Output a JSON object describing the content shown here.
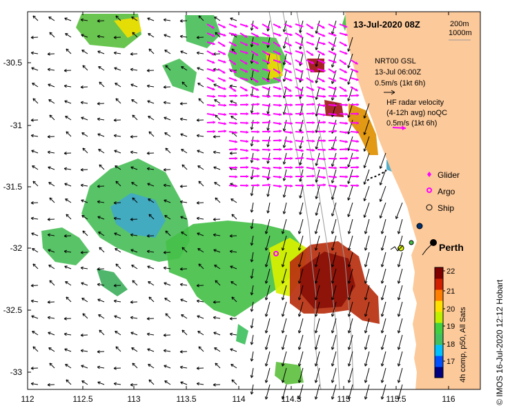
{
  "title": "13-Jul-2020 08Z",
  "isobaths": [
    "200m",
    "1000m"
  ],
  "model_legend": {
    "lines": [
      "NRT00 GSL",
      "13-Jul 06:00Z",
      "0.5m/s (1kt 6h)"
    ],
    "arrow_color": "#000000"
  },
  "radar_legend": {
    "lines": [
      "HF radar velocity",
      "(4-12h avg) noQC",
      "0.5m/s (1kt 6h)"
    ],
    "arrow_color": "#ff00ff"
  },
  "symbols": [
    {
      "label": "Glider",
      "color": "#ff00ff",
      "icon": "diamond-icon"
    },
    {
      "label": "Argo",
      "color": "#ff00ff",
      "icon": "ring-icon"
    },
    {
      "label": "Ship",
      "color": "#000000",
      "icon": "circle-icon"
    }
  ],
  "city": "Perth",
  "colorbar": {
    "ticks": [
      "22",
      "21",
      "20",
      "19",
      "18",
      "17"
    ],
    "label": "4h comp, p50, All Sats",
    "colors": [
      "#000080",
      "#0050ff",
      "#00c0ff",
      "#40c060",
      "#40d040",
      "#c0f000",
      "#ffe000",
      "#ff8000",
      "#d02000",
      "#800000"
    ]
  },
  "credit": "© IMOS 16-Jul-2020 12:12 Hobart",
  "axes": {
    "x_ticks": [
      "112",
      "112.5",
      "113",
      "113.5",
      "114",
      "114.5",
      "115",
      "115.5",
      "116"
    ],
    "y_ticks": [
      "-30.5",
      "-31",
      "-31.5",
      "-32",
      "-32.5",
      "-33"
    ]
  },
  "colors": {
    "land": "#fcc99a",
    "ocean": "#ffffff",
    "radar": "#ff00ff"
  }
}
